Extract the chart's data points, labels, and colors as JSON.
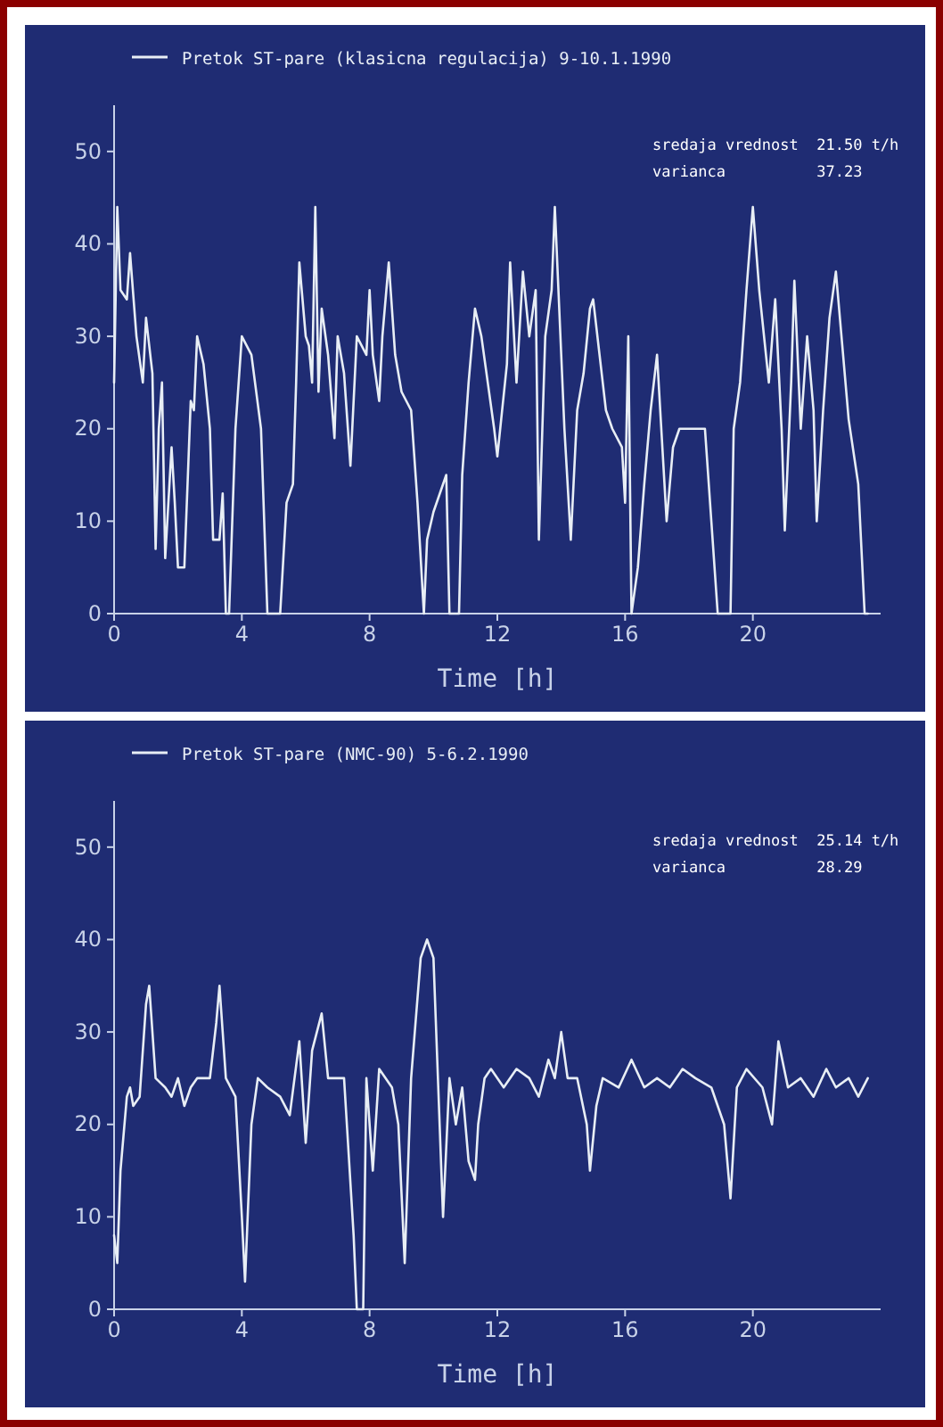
{
  "chart_data": [
    {
      "type": "line",
      "xlabel": "Time [h]",
      "xlim": [
        0,
        24
      ],
      "ylim": [
        0,
        55
      ],
      "xticks": [
        0,
        4,
        8,
        12,
        16,
        20
      ],
      "yticks": [
        0,
        10,
        20,
        30,
        40,
        50
      ],
      "legend": "top left",
      "annotations": [
        "sredaja vrednost  21.50 t/h",
        "varianca          37.23"
      ],
      "series": [
        {
          "name": "Pretok ST-pare (klasicna regulacija) 9-10.1.1990",
          "color": "#e8eef5",
          "x": [
            0,
            0.1,
            0.2,
            0.4,
            0.5,
            0.7,
            0.9,
            1.0,
            1.2,
            1.3,
            1.4,
            1.5,
            1.6,
            1.8,
            1.9,
            2.0,
            2.2,
            2.4,
            2.5,
            2.6,
            2.8,
            3.0,
            3.1,
            3.3,
            3.4,
            3.5,
            3.6,
            3.8,
            4.0,
            4.3,
            4.6,
            4.8,
            5.2,
            5.4,
            5.6,
            5.7,
            5.8,
            6.0,
            6.1,
            6.2,
            6.3,
            6.4,
            6.5,
            6.7,
            6.9,
            7.0,
            7.2,
            7.4,
            7.6,
            7.9,
            8.0,
            8.1,
            8.3,
            8.4,
            8.6,
            8.8,
            9.0,
            9.3,
            9.5,
            9.7,
            9.8,
            10.0,
            10.2,
            10.4,
            10.5,
            10.8,
            10.9,
            11.1,
            11.3,
            11.5,
            11.9,
            12.0,
            12.3,
            12.4,
            12.6,
            12.8,
            13.0,
            13.2,
            13.3,
            13.5,
            13.7,
            13.8,
            14.1,
            14.3,
            14.5,
            14.7,
            14.9,
            15.0,
            15.2,
            15.4,
            15.6,
            15.9,
            16.0,
            16.1,
            16.2,
            16.4,
            16.6,
            16.8,
            17.0,
            17.3,
            17.5,
            17.7,
            18.5,
            18.7,
            18.9,
            19.3,
            19.4,
            19.6,
            19.8,
            20.0,
            20.2,
            20.5,
            20.7,
            20.9,
            21.0,
            21.2,
            21.3,
            21.5,
            21.7,
            21.9,
            22.0,
            22.2,
            22.4,
            22.6,
            22.8,
            23.0,
            23.3,
            23.5,
            23.6
          ],
          "values": [
            25,
            44,
            35,
            34,
            39,
            30,
            25,
            32,
            26,
            7,
            20,
            25,
            6,
            18,
            12,
            5,
            5,
            23,
            22,
            30,
            27,
            20,
            8,
            8,
            13,
            0,
            0,
            20,
            30,
            28,
            20,
            0,
            0,
            12,
            14,
            25,
            38,
            30,
            29,
            25,
            44,
            24,
            33,
            28,
            19,
            30,
            26,
            16,
            30,
            28,
            35,
            28,
            23,
            30,
            38,
            28,
            24,
            22,
            12,
            0,
            8,
            11,
            13,
            15,
            0,
            0,
            15,
            25,
            33,
            30,
            20,
            17,
            27,
            38,
            25,
            37,
            30,
            35,
            8,
            30,
            35,
            44,
            20,
            8,
            22,
            26,
            33,
            34,
            28,
            22,
            20,
            18,
            12,
            30,
            0,
            5,
            14,
            22,
            28,
            10,
            18,
            20,
            20,
            10,
            0,
            0,
            20,
            25,
            35,
            44,
            35,
            25,
            34,
            20,
            9,
            25,
            36,
            20,
            30,
            22,
            10,
            22,
            32,
            37,
            29,
            21,
            14,
            0,
            0
          ]
        }
      ]
    },
    {
      "type": "line",
      "xlabel": "Time [h]",
      "xlim": [
        0,
        24
      ],
      "ylim": [
        0,
        55
      ],
      "xticks": [
        0,
        4,
        8,
        12,
        16,
        20
      ],
      "yticks": [
        0,
        10,
        20,
        30,
        40,
        50
      ],
      "legend": "top left",
      "annotations": [
        "sredaja vrednost  25.14 t/h",
        "varianca          28.29"
      ],
      "series": [
        {
          "name": "Pretok ST-pare (NMC-90) 5-6.2.1990",
          "color": "#e8eef5",
          "x": [
            0,
            0.1,
            0.2,
            0.4,
            0.5,
            0.6,
            0.8,
            1.0,
            1.1,
            1.3,
            1.6,
            1.8,
            2.0,
            2.2,
            2.4,
            2.6,
            3.0,
            3.2,
            3.3,
            3.5,
            3.8,
            4.0,
            4.1,
            4.3,
            4.5,
            4.8,
            5.2,
            5.5,
            5.8,
            6.0,
            6.2,
            6.5,
            6.7,
            7.2,
            7.5,
            7.6,
            7.8,
            7.9,
            8.1,
            8.3,
            8.7,
            8.9,
            9.1,
            9.3,
            9.6,
            9.8,
            10.0,
            10.3,
            10.5,
            10.7,
            10.9,
            11.1,
            11.3,
            11.4,
            11.6,
            11.8,
            12.2,
            12.6,
            13.0,
            13.3,
            13.6,
            13.8,
            14.0,
            14.2,
            14.5,
            14.8,
            14.9,
            15.1,
            15.3,
            15.8,
            16.2,
            16.6,
            17.0,
            17.4,
            17.8,
            18.2,
            18.7,
            19.1,
            19.3,
            19.5,
            19.8,
            20.3,
            20.6,
            20.8,
            21.1,
            21.5,
            21.9,
            22.3,
            22.6,
            23.0,
            23.3,
            23.6
          ],
          "values": [
            8,
            5,
            15,
            23,
            24,
            22,
            23,
            33,
            35,
            25,
            24,
            23,
            25,
            22,
            24,
            25,
            25,
            31,
            35,
            25,
            23,
            10,
            3,
            20,
            25,
            24,
            23,
            21,
            29,
            18,
            28,
            32,
            25,
            25,
            8,
            0,
            0,
            25,
            15,
            26,
            24,
            20,
            5,
            25,
            38,
            40,
            38,
            10,
            25,
            20,
            24,
            16,
            14,
            20,
            25,
            26,
            24,
            26,
            25,
            23,
            27,
            25,
            30,
            25,
            25,
            20,
            15,
            22,
            25,
            24,
            27,
            24,
            25,
            24,
            26,
            25,
            24,
            20,
            12,
            24,
            26,
            24,
            20,
            29,
            24,
            25,
            23,
            26,
            24,
            25,
            23,
            25
          ]
        }
      ]
    }
  ]
}
